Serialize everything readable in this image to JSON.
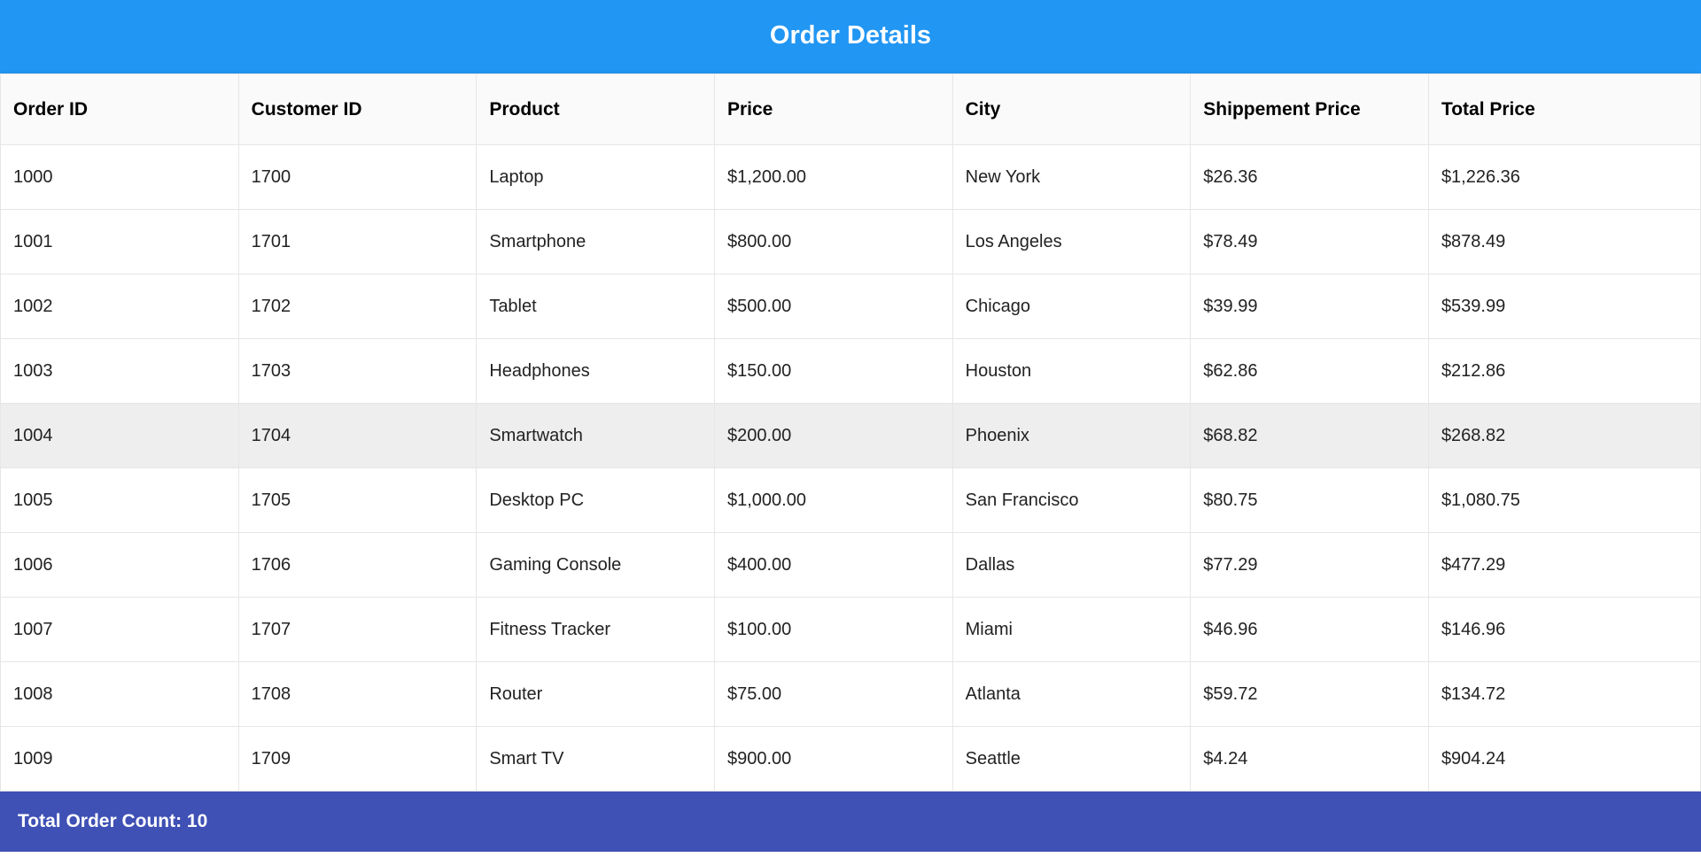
{
  "header": {
    "title": "Order Details"
  },
  "table": {
    "type": "table",
    "header_bg": "#fafafa",
    "row_bg": "#ffffff",
    "highlight_bg": "#eeeeee",
    "border_color": "#e6e6e6",
    "columns": [
      {
        "label": "Order ID",
        "width_pct": 14
      },
      {
        "label": "Customer ID",
        "width_pct": 14
      },
      {
        "label": "Product",
        "width_pct": 14
      },
      {
        "label": "Price",
        "width_pct": 14
      },
      {
        "label": "City",
        "width_pct": 14
      },
      {
        "label": "Shippement Price",
        "width_pct": 14
      },
      {
        "label": "Total Price",
        "width_pct": 16
      }
    ],
    "rows": [
      {
        "highlight": false,
        "cells": [
          "1000",
          "1700",
          "Laptop",
          "$1,200.00",
          "New York",
          "$26.36",
          "$1,226.36"
        ]
      },
      {
        "highlight": false,
        "cells": [
          "1001",
          "1701",
          "Smartphone",
          "$800.00",
          "Los Angeles",
          "$78.49",
          "$878.49"
        ]
      },
      {
        "highlight": false,
        "cells": [
          "1002",
          "1702",
          "Tablet",
          "$500.00",
          "Chicago",
          "$39.99",
          "$539.99"
        ]
      },
      {
        "highlight": false,
        "cells": [
          "1003",
          "1703",
          "Headphones",
          "$150.00",
          "Houston",
          "$62.86",
          "$212.86"
        ]
      },
      {
        "highlight": true,
        "cells": [
          "1004",
          "1704",
          "Smartwatch",
          "$200.00",
          "Phoenix",
          "$68.82",
          "$268.82"
        ]
      },
      {
        "highlight": false,
        "cells": [
          "1005",
          "1705",
          "Desktop PC",
          "$1,000.00",
          "San Francisco",
          "$80.75",
          "$1,080.75"
        ]
      },
      {
        "highlight": false,
        "cells": [
          "1006",
          "1706",
          "Gaming Console",
          "$400.00",
          "Dallas",
          "$77.29",
          "$477.29"
        ]
      },
      {
        "highlight": false,
        "cells": [
          "1007",
          "1707",
          "Fitness Tracker",
          "$100.00",
          "Miami",
          "$46.96",
          "$146.96"
        ]
      },
      {
        "highlight": false,
        "cells": [
          "1008",
          "1708",
          "Router",
          "$75.00",
          "Atlanta",
          "$59.72",
          "$134.72"
        ]
      },
      {
        "highlight": false,
        "cells": [
          "1009",
          "1709",
          "Smart TV",
          "$900.00",
          "Seattle",
          "$4.24",
          "$904.24"
        ]
      }
    ]
  },
  "footer": {
    "bg": "#3f51b5",
    "text_color": "#ffffff",
    "label": "Total Order Count: 10"
  },
  "header_style": {
    "bg": "#2196f3",
    "text_color": "#ffffff"
  }
}
